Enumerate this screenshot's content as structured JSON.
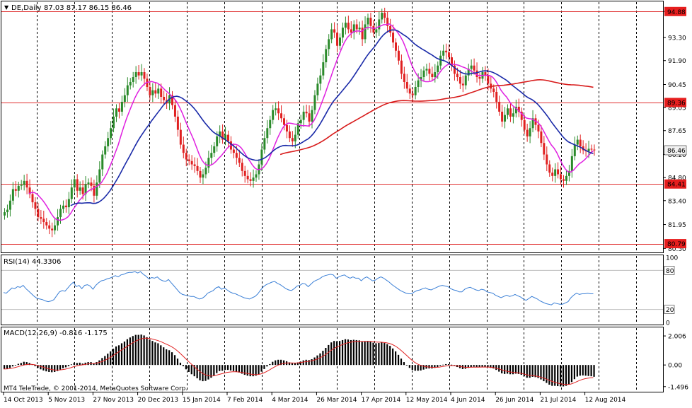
{
  "chart_data": {
    "type": "candlestick",
    "symbol_label": "DE,Daily",
    "ohlc_header": "87.03 87.17 86.15 86.46",
    "watermark": "MT4 TeleTrade, © 2001-2014, MetaQuotes Software Corp.",
    "colors": {
      "up_candle": "#2a8a2a",
      "down_candle": "#e02020",
      "ma_short": "#e020e0",
      "ma_mid": "#1a2aa8",
      "ma_long": "#d81c1c",
      "level_line": "#e03030",
      "level_label_bg": "#e61e1e",
      "price_label_bg": "#f2f2f2",
      "rsi_line": "#3a7fd6",
      "macd_hist": "#000000",
      "macd_signal": "#e02020"
    },
    "main": {
      "y_ticks": [
        "94.88",
        "93.30",
        "91.90",
        "90.45",
        "89.05",
        "87.65",
        "86.20",
        "84.80",
        "83.40",
        "81.95",
        "80.50"
      ],
      "ylim": [
        80.3,
        95.45
      ],
      "levels": [
        94.88,
        89.36,
        84.41,
        80.79
      ],
      "level_labels": [
        "94.88",
        "89.36",
        "84.41",
        "80.79"
      ],
      "current_price_label": "86.46",
      "current_price": 86.46
    },
    "x_ticks": [
      "14 Oct 2013",
      "5 Nov 2013",
      "27 Nov 2013",
      "20 Dec 2013",
      "15 Jan 2014",
      "7 Feb 2014",
      "4 Mar 2014",
      "26 Mar 2014",
      "17 Apr 2014",
      "12 May 2014",
      "4 Jun 2014",
      "26 Jun 2014",
      "21 Jul 2014",
      "12 Aug 2014"
    ],
    "x_tick_index": [
      0,
      16,
      32,
      48,
      64,
      80,
      96,
      112,
      128,
      144,
      160,
      176,
      192,
      208
    ],
    "n_bars": 212,
    "closes": [
      82.7,
      82.85,
      83.4,
      84.1,
      84.0,
      84.3,
      84.35,
      84.6,
      84.2,
      83.8,
      83.3,
      82.9,
      82.4,
      82.3,
      82.1,
      81.9,
      81.7,
      81.6,
      81.9,
      82.4,
      82.9,
      83.1,
      83.0,
      83.5,
      84.2,
      84.7,
      84.0,
      84.2,
      83.8,
      84.4,
      84.5,
      84.3,
      83.7,
      84.5,
      85.3,
      86.2,
      86.7,
      87.2,
      87.8,
      88.5,
      89.0,
      88.8,
      89.4,
      89.8,
      90.4,
      90.6,
      90.9,
      91.2,
      91.0,
      91.2,
      90.8,
      90.3,
      89.8,
      90.1,
      89.9,
      90.2,
      89.7,
      89.5,
      89.3,
      89.8,
      89.2,
      88.5,
      87.7,
      86.8,
      86.3,
      85.9,
      85.8,
      85.6,
      85.5,
      85.2,
      84.8,
      85.0,
      85.4,
      86.0,
      86.3,
      86.7,
      87.3,
      87.6,
      87.1,
      87.4,
      87.0,
      86.5,
      86.3,
      86.0,
      85.7,
      85.2,
      84.9,
      84.7,
      84.6,
      84.8,
      85.0,
      85.6,
      86.5,
      87.2,
      87.8,
      88.3,
      88.9,
      89.0,
      88.7,
      88.4,
      88.0,
      87.6,
      87.2,
      87.0,
      87.4,
      88.1,
      88.3,
      88.8,
      88.7,
      88.2,
      88.9,
      89.8,
      90.5,
      91.0,
      91.8,
      92.6,
      93.2,
      93.8,
      93.6,
      92.8,
      93.3,
      93.9,
      94.2,
      93.8,
      93.6,
      94.1,
      93.8,
      93.9,
      93.2,
      94.1,
      94.5,
      94.0,
      93.6,
      93.8,
      94.4,
      94.8,
      94.5,
      94.0,
      93.6,
      93.0,
      92.5,
      91.9,
      91.1,
      90.6,
      90.2,
      89.9,
      89.8,
      90.3,
      90.7,
      90.9,
      91.3,
      91.4,
      91.1,
      90.9,
      91.2,
      91.6,
      92.2,
      92.5,
      92.4,
      92.1,
      91.6,
      91.1,
      90.9,
      90.5,
      90.4,
      91.0,
      91.4,
      91.6,
      91.3,
      90.9,
      90.8,
      91.2,
      91.0,
      90.5,
      90.2,
      90.0,
      89.4,
      88.8,
      88.2,
      88.6,
      89.0,
      88.5,
      88.7,
      89.1,
      88.8,
      88.3,
      87.7,
      87.3,
      87.8,
      88.4,
      88.0,
      87.6,
      86.9,
      86.2,
      85.6,
      85.1,
      84.9,
      85.3,
      85.0,
      84.7,
      84.6,
      84.9,
      85.2,
      86.1,
      86.8,
      87.1,
      86.7,
      86.46,
      86.4,
      86.55,
      86.5,
      86.46
    ],
    "rsi": {
      "label": "RSI(14) 44.3306",
      "levels_labels": [
        "100",
        "80",
        "20",
        "0"
      ],
      "ylim": [
        0,
        100
      ],
      "overbought": 80,
      "oversold": 20,
      "values": [
        46,
        45,
        49,
        53,
        52,
        55,
        54,
        57,
        52,
        48,
        44,
        40,
        37,
        36,
        35,
        33,
        32,
        33,
        35,
        41,
        47,
        49,
        48,
        53,
        58,
        62,
        55,
        57,
        52,
        57,
        58,
        56,
        51,
        57,
        61,
        64,
        65,
        67,
        68,
        70,
        72,
        70,
        73,
        74,
        76,
        77,
        77,
        78,
        76,
        78,
        74,
        71,
        67,
        69,
        68,
        70,
        66,
        64,
        63,
        66,
        61,
        56,
        51,
        46,
        43,
        42,
        41,
        40,
        40,
        38,
        36,
        37,
        40,
        45,
        47,
        49,
        53,
        55,
        51,
        53,
        50,
        47,
        45,
        44,
        42,
        40,
        38,
        37,
        36,
        38,
        40,
        44,
        50,
        55,
        58,
        60,
        62,
        63,
        60,
        58,
        55,
        52,
        50,
        49,
        52,
        56,
        57,
        60,
        59,
        55,
        59,
        63,
        65,
        67,
        70,
        72,
        73,
        74,
        73,
        68,
        70,
        72,
        73,
        70,
        68,
        70,
        68,
        68,
        64,
        68,
        70,
        67,
        64,
        65,
        68,
        70,
        68,
        65,
        62,
        58,
        55,
        52,
        49,
        47,
        45,
        44,
        44,
        47,
        49,
        50,
        52,
        53,
        51,
        50,
        52,
        54,
        56,
        57,
        56,
        55,
        52,
        50,
        49,
        47,
        47,
        51,
        53,
        54,
        52,
        50,
        49,
        51,
        50,
        47,
        46,
        45,
        42,
        40,
        38,
        40,
        42,
        40,
        41,
        43,
        41,
        39,
        36,
        34,
        37,
        40,
        38,
        36,
        33,
        31,
        29,
        28,
        27,
        30,
        29,
        28,
        28,
        30,
        32,
        38,
        42,
        45,
        43,
        44,
        44,
        45,
        44,
        44
      ]
    },
    "macd": {
      "label": "MACD(12,26,9) -0.816 -1.175",
      "y_ticks": [
        "2.006",
        "0.00",
        "-1.496"
      ],
      "y_tick_values": [
        2.006,
        0.0,
        -1.496
      ],
      "ylim": [
        -1.75,
        2.45
      ],
      "histogram": [
        -0.28,
        -0.26,
        -0.2,
        -0.1,
        0.0,
        0.08,
        0.14,
        0.22,
        0.2,
        0.14,
        0.04,
        -0.08,
        -0.2,
        -0.3,
        -0.38,
        -0.44,
        -0.48,
        -0.5,
        -0.48,
        -0.42,
        -0.32,
        -0.22,
        -0.16,
        -0.08,
        0.04,
        0.16,
        0.14,
        0.16,
        0.1,
        0.16,
        0.2,
        0.2,
        0.12,
        0.2,
        0.32,
        0.48,
        0.62,
        0.78,
        0.94,
        1.12,
        1.28,
        1.36,
        1.5,
        1.62,
        1.78,
        1.9,
        2.0,
        2.08,
        2.08,
        2.1,
        2.04,
        1.92,
        1.76,
        1.66,
        1.56,
        1.5,
        1.36,
        1.22,
        1.08,
        1.02,
        0.88,
        0.68,
        0.44,
        0.16,
        -0.08,
        -0.3,
        -0.48,
        -0.64,
        -0.78,
        -0.92,
        -1.06,
        -1.12,
        -1.1,
        -1.0,
        -0.88,
        -0.74,
        -0.56,
        -0.42,
        -0.4,
        -0.34,
        -0.34,
        -0.38,
        -0.42,
        -0.46,
        -0.52,
        -0.6,
        -0.68,
        -0.74,
        -0.78,
        -0.78,
        -0.74,
        -0.64,
        -0.46,
        -0.28,
        -0.1,
        0.06,
        0.22,
        0.32,
        0.36,
        0.36,
        0.32,
        0.26,
        0.18,
        0.12,
        0.12,
        0.18,
        0.24,
        0.32,
        0.36,
        0.34,
        0.4,
        0.52,
        0.66,
        0.8,
        0.98,
        1.18,
        1.38,
        1.56,
        1.66,
        1.64,
        1.66,
        1.72,
        1.78,
        1.76,
        1.72,
        1.74,
        1.72,
        1.7,
        1.6,
        1.62,
        1.66,
        1.62,
        1.54,
        1.5,
        1.52,
        1.56,
        1.52,
        1.44,
        1.32,
        1.14,
        0.94,
        0.7,
        0.44,
        0.2,
        -0.02,
        -0.2,
        -0.34,
        -0.4,
        -0.4,
        -0.38,
        -0.32,
        -0.26,
        -0.24,
        -0.24,
        -0.2,
        -0.14,
        -0.06,
        0.02,
        0.06,
        0.06,
        0.02,
        -0.06,
        -0.14,
        -0.22,
        -0.28,
        -0.26,
        -0.2,
        -0.14,
        -0.12,
        -0.14,
        -0.16,
        -0.12,
        -0.12,
        -0.16,
        -0.2,
        -0.24,
        -0.34,
        -0.46,
        -0.58,
        -0.62,
        -0.6,
        -0.64,
        -0.64,
        -0.6,
        -0.62,
        -0.68,
        -0.78,
        -0.88,
        -0.88,
        -0.82,
        -0.84,
        -0.9,
        -1.0,
        -1.12,
        -1.24,
        -1.36,
        -1.44,
        -1.44,
        -1.46,
        -1.48,
        -1.48,
        -1.44,
        -1.36,
        -1.18,
        -0.98,
        -0.8,
        -0.74,
        -0.72,
        -0.74,
        -0.76,
        -0.78,
        -0.816
      ]
    }
  }
}
